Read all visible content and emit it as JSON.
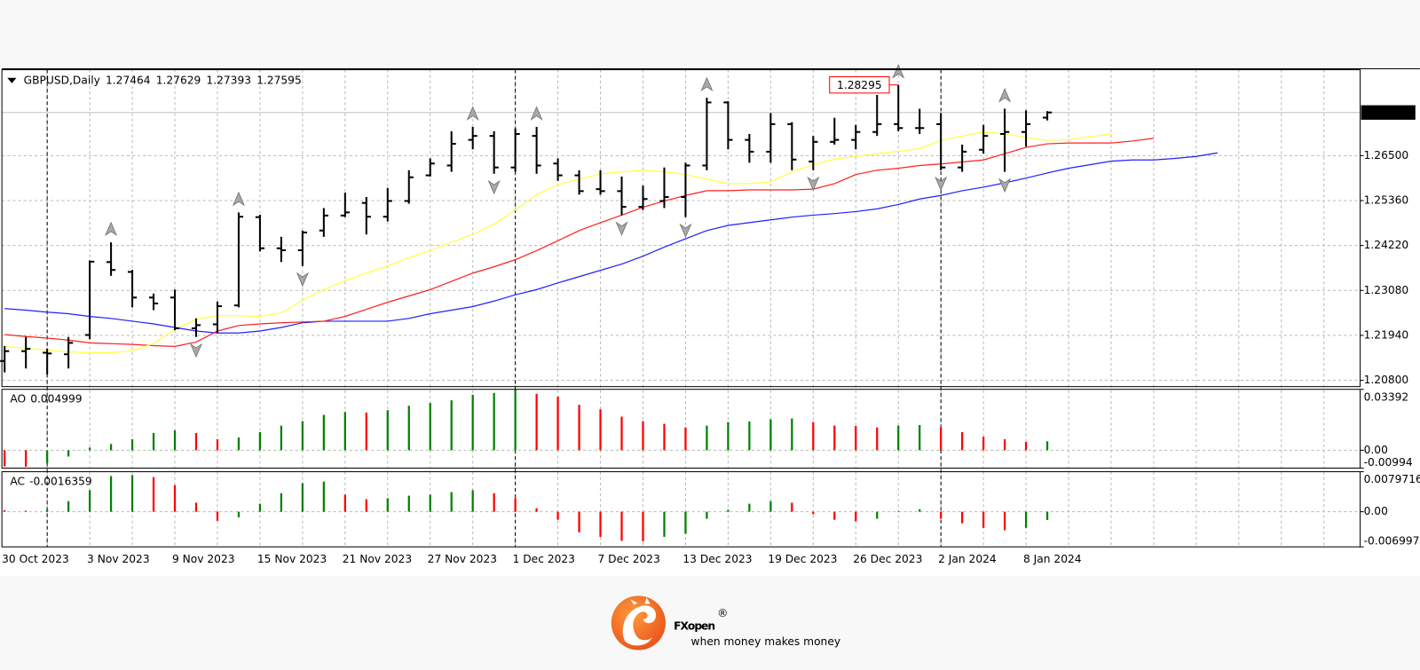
{
  "chart_data": [
    {
      "type": "ohlc",
      "title": "GBPUSD,Daily",
      "color": "#000000",
      "grid": true,
      "categories": [
        "30 Oct 2023",
        null,
        null,
        null,
        "3 Nov 2023",
        null,
        null,
        null,
        "9 Nov 2023",
        null,
        null,
        null,
        "15 Nov 2023",
        null,
        null,
        null,
        "21 Nov 2023",
        null,
        null,
        null,
        "27 Nov 2023",
        null,
        null,
        null,
        "1 Dec 2023",
        null,
        null,
        null,
        "7 Dec 2023",
        null,
        null,
        null,
        "13 Dec 2023",
        null,
        null,
        null,
        "19 Dec 2023",
        null,
        null,
        null,
        "26 Dec 2023",
        null,
        null,
        null,
        "2 Jan 2024",
        null,
        null,
        null,
        "8 Jan 2024",
        null,
        null,
        null,
        null,
        null,
        null,
        null,
        null,
        null
      ],
      "open": [
        1.2129,
        1.2154,
        1.215,
        1.2146,
        1.2195,
        1.238,
        1.2355,
        1.229,
        1.229,
        1.2212,
        1.2222,
        1.227,
        1.2494,
        1.2415,
        1.241,
        1.246,
        1.2498,
        1.253,
        1.2495,
        1.2535,
        1.26,
        1.2625,
        1.269,
        1.27,
        1.262,
        1.27,
        1.263,
        1.26,
        1.2565,
        1.256,
        1.252,
        1.2535,
        1.2545,
        1.2625,
        1.2785,
        1.269,
        1.266,
        1.273,
        1.2635,
        1.2685,
        1.269,
        1.271,
        1.273,
        1.272,
        1.273,
        1.262,
        1.2665,
        1.2705,
        1.271,
        1.27464,
        null,
        null,
        null,
        null,
        null,
        null,
        null,
        null
      ],
      "high": [
        1.2167,
        1.219,
        1.216,
        1.219,
        1.2384,
        1.243,
        1.236,
        1.23,
        1.231,
        1.2237,
        1.228,
        1.2506,
        1.25,
        1.2444,
        1.246,
        1.2517,
        1.2556,
        1.2545,
        1.2568,
        1.2613,
        1.2643,
        1.2712,
        1.2723,
        1.2712,
        1.2719,
        1.2723,
        1.2643,
        1.2613,
        1.2613,
        1.2597,
        1.2574,
        1.262,
        1.2632,
        1.2797,
        1.2788,
        1.2705,
        1.2758,
        1.2735,
        1.27,
        1.2746,
        1.2728,
        1.2804,
        1.28295,
        1.2769,
        1.2758,
        1.2678,
        1.2728,
        1.2769,
        1.2765,
        1.27629,
        null,
        null,
        null,
        null,
        null,
        null,
        null,
        null
      ],
      "low": [
        1.21,
        1.211,
        1.2095,
        1.211,
        1.2184,
        1.2345,
        1.2265,
        1.2258,
        1.2207,
        1.219,
        1.22,
        1.2265,
        1.2407,
        1.238,
        1.237,
        1.2444,
        1.2494,
        1.245,
        1.2483,
        1.2528,
        1.2597,
        1.2609,
        1.2666,
        1.2604,
        1.2609,
        1.2604,
        1.2586,
        1.2551,
        1.2551,
        1.2499,
        1.2512,
        1.2517,
        1.2494,
        1.2613,
        1.2666,
        1.2632,
        1.2632,
        1.2613,
        1.2613,
        1.2678,
        1.2666,
        1.27,
        1.2712,
        1.2705,
        1.2613,
        1.2609,
        1.2655,
        1.2609,
        1.2673,
        1.27393,
        null,
        null,
        null,
        null,
        null,
        null,
        null,
        null
      ],
      "close": [
        1.2154,
        1.216,
        1.2148,
        1.2175,
        1.2381,
        1.236,
        1.229,
        1.2275,
        1.2212,
        1.222,
        1.2268,
        1.2495,
        1.2415,
        1.241,
        1.2455,
        1.2498,
        1.2506,
        1.2495,
        1.2535,
        1.2595,
        1.263,
        1.268,
        1.27,
        1.262,
        1.2705,
        1.2625,
        1.26,
        1.256,
        1.256,
        1.252,
        1.254,
        1.2545,
        1.2625,
        1.2785,
        1.269,
        1.266,
        1.273,
        1.264,
        1.2685,
        1.269,
        1.271,
        1.273,
        1.272,
        1.272,
        1.262,
        1.266,
        1.27,
        1.271,
        1.273,
        1.27595,
        null,
        null,
        null,
        null,
        null,
        null,
        null,
        null
      ],
      "series": [
        {
          "color": "#2020ff",
          "values": [
            1.2262,
            1.2258,
            1.2253,
            1.2249,
            1.2242,
            1.2237,
            1.223,
            1.2223,
            1.2214,
            1.2205,
            1.22,
            1.22,
            1.2205,
            1.2214,
            1.2226,
            1.223,
            1.223,
            1.223,
            1.223,
            1.2237,
            1.2249,
            1.2258,
            1.2267,
            1.2281,
            1.2297,
            1.231,
            1.2327,
            1.2343,
            1.2359,
            1.2375,
            1.2395,
            1.2418,
            1.2439,
            1.246,
            1.2473,
            1.248,
            1.2487,
            1.2494,
            1.2499,
            1.2503,
            1.2508,
            1.2515,
            1.2526,
            1.254,
            1.2549,
            1.2561,
            1.257,
            1.2581,
            1.2593,
            1.2606,
            1.2618,
            1.2627,
            1.2636,
            1.2639,
            1.2639,
            1.2643,
            1.2648,
            1.2657
          ]
        },
        {
          "color": "#ff2020",
          "values": [
            1.2196,
            1.2191,
            1.2187,
            1.2182,
            1.2175,
            1.2173,
            1.2171,
            1.2168,
            1.2166,
            1.2177,
            1.2205,
            1.2219,
            1.2223,
            1.2226,
            1.2228,
            1.223,
            1.2242,
            1.226,
            1.2278,
            1.2294,
            1.231,
            1.2331,
            1.2352,
            1.2368,
            1.2386,
            1.2409,
            1.2434,
            1.246,
            1.248,
            1.2499,
            1.2519,
            1.2535,
            1.2549,
            1.2561,
            1.2561,
            1.2563,
            1.2563,
            1.2563,
            1.2565,
            1.2579,
            1.2602,
            1.2613,
            1.2618,
            1.2625,
            1.2629,
            1.2634,
            1.2639,
            1.2655,
            1.2671,
            1.268,
            1.2682,
            1.2682,
            1.2682,
            1.2687,
            1.2694,
            null,
            null,
            null
          ]
        },
        {
          "color": "#ffff40",
          "values": [
            1.2166,
            1.2161,
            1.2157,
            1.2152,
            1.215,
            1.215,
            1.2155,
            1.2173,
            1.221,
            1.2235,
            1.2244,
            1.2244,
            1.2242,
            1.2251,
            1.2283,
            1.231,
            1.2333,
            1.2352,
            1.237,
            1.2391,
            1.2409,
            1.243,
            1.245,
            1.2476,
            1.2512,
            1.2551,
            1.2577,
            1.259,
            1.2604,
            1.2609,
            1.2613,
            1.2609,
            1.2602,
            1.259,
            1.2579,
            1.2579,
            1.2583,
            1.2609,
            1.2627,
            1.2641,
            1.2648,
            1.2655,
            1.2661,
            1.2668,
            1.2689,
            1.27,
            1.271,
            1.2705,
            1.2696,
            1.2689,
            1.2691,
            1.2698,
            1.2705,
            null,
            null,
            null,
            null,
            null
          ]
        }
      ],
      "fractals": {
        "up": [
          5,
          11,
          22,
          25,
          33,
          42,
          47
        ],
        "down": [
          9,
          14,
          23,
          29,
          32,
          38,
          44,
          47
        ]
      },
      "period_separators": [
        2,
        24,
        44
      ],
      "ylim": [
        1.2064,
        1.2868
      ],
      "yticks": [
        {
          "value": 1.208,
          "label": "1.20800"
        },
        {
          "value": 1.2194,
          "label": "1.21940"
        },
        {
          "value": 1.2308,
          "label": "1.23080"
        },
        {
          "value": 1.2422,
          "label": "1.24220"
        },
        {
          "value": 1.2536,
          "label": "1.25360"
        },
        {
          "value": 1.265,
          "label": "1.26500"
        }
      ]
    },
    {
      "type": "bar",
      "title": "AO",
      "up_color": "#008000",
      "down_color": "#ff0000",
      "values": [
        -0.009,
        -0.0092,
        -0.007,
        -0.0035,
        0.0015,
        0.0035,
        0.0061,
        0.0096,
        0.0111,
        0.0096,
        0.0061,
        0.0071,
        0.0101,
        0.0137,
        0.0162,
        0.0197,
        0.0213,
        0.021,
        0.0223,
        0.0248,
        0.0263,
        0.0278,
        0.0309,
        0.0319,
        0.03392,
        0.0314,
        0.0299,
        0.0253,
        0.0228,
        0.0187,
        0.0162,
        0.0147,
        0.0127,
        0.0137,
        0.0157,
        0.016,
        0.0172,
        0.0177,
        0.0157,
        0.0137,
        0.0135,
        0.0127,
        0.0137,
        0.014,
        0.0127,
        0.0101,
        0.0076,
        0.0061,
        0.0046,
        0.004999
      ],
      "ylim": [
        -0.00994,
        0.03392
      ],
      "yticks": [
        -0.00994,
        {
          "value": 0,
          "label": "0.00"
        },
        0.03392
      ]
    },
    {
      "type": "bar",
      "title": "AC",
      "up_color": "#008000",
      "down_color": "#ff0000",
      "values": [
        0.0003,
        0.0002,
        0.0004,
        0.0021,
        0.0043,
        0.0071,
        0.0073,
        0.0069,
        0.0053,
        0.0018,
        -0.0018,
        -0.0011,
        0.0016,
        0.0037,
        0.0057,
        0.006,
        0.0034,
        0.0025,
        0.0027,
        0.0032,
        0.0034,
        0.0039,
        0.0043,
        0.0037,
        0.0027,
        0.0007,
        -0.0016,
        -0.0041,
        -0.005,
        -0.0058,
        -0.0059,
        -0.005,
        -0.0044,
        -0.0014,
        0.0004,
        0.0016,
        0.0021,
        0.0018,
        -0.0005,
        -0.0016,
        -0.0019,
        -0.0014,
        0.0001,
        0.0005,
        -0.0014,
        -0.0023,
        -0.0032,
        -0.0037,
        -0.0032,
        -0.0016359
      ],
      "ylim": [
        -0.006997,
        0.0079716
      ],
      "yticks": [
        -0.006997,
        {
          "value": 0,
          "label": "0.00"
        },
        0.0079716
      ]
    }
  ],
  "logo": {
    "brand_dark": "FX",
    "brand_accent": "open",
    "mark": "®",
    "tagline": "when money makes money"
  }
}
